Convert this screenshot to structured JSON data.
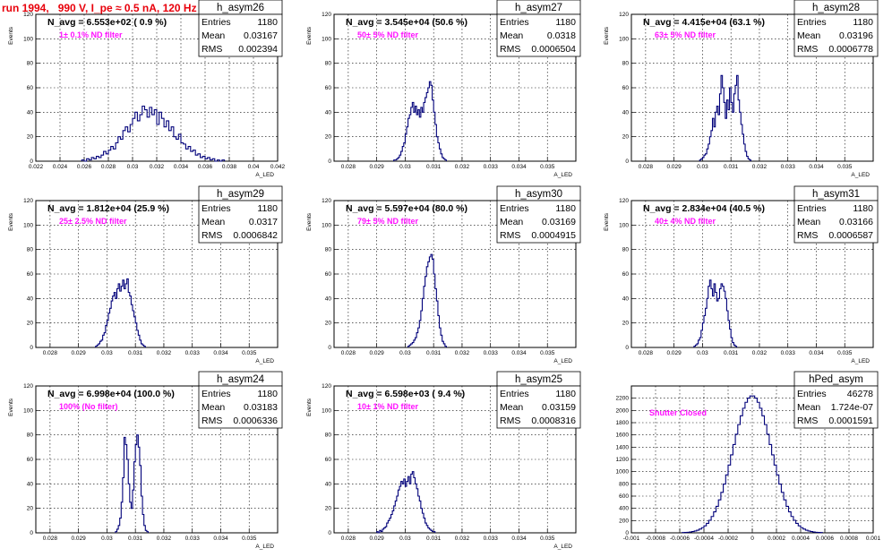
{
  "title": "run 1994,   990 V, I_pe ≈ 0.5 nA, 120 Hz",
  "chart_data": [
    {
      "type": "histogram",
      "name": "h_asym26",
      "navg": "N_avg = 6.553e+02 ( 0.9 %)",
      "filter": "1± 0.1% ND filter",
      "stats": {
        "Entries": "1180",
        "Mean": "0.03167",
        "RMS": "0.002394"
      },
      "xlabel": "A_LED",
      "ylabel": "Events",
      "xlim": [
        0.022,
        0.042
      ],
      "ylim": [
        0,
        120
      ],
      "xticks": [
        "0.022",
        "0.024",
        "0.026",
        "0.028",
        "0.03",
        "0.032",
        "0.034",
        "0.036",
        "0.038",
        "0.04",
        "0.042"
      ],
      "yticks": [
        "0",
        "20",
        "40",
        "60",
        "80",
        "100",
        "120"
      ],
      "bins": {
        "x0": 0.0258,
        "width": 0.0002,
        "values": [
          1,
          0,
          2,
          1,
          3,
          2,
          4,
          3,
          5,
          8,
          6,
          9,
          12,
          10,
          15,
          20,
          18,
          25,
          28,
          24,
          30,
          35,
          40,
          33,
          38,
          45,
          42,
          36,
          44,
          38,
          42,
          30,
          40,
          35,
          28,
          33,
          25,
          28,
          20,
          18,
          22,
          15,
          14,
          10,
          12,
          8,
          9,
          5,
          6,
          3,
          4,
          2,
          3,
          1,
          2,
          0,
          1,
          0,
          1
        ]
      }
    },
    {
      "type": "histogram",
      "name": "h_asym27",
      "navg": "N_avg = 3.545e+04 (50.6 %)",
      "filter": "50± 5% ND filter",
      "stats": {
        "Entries": "1180",
        "Mean": "0.0318",
        "RMS": "0.0006504"
      },
      "xlabel": "A_LED",
      "ylabel": "Events",
      "xlim": [
        0.0275,
        0.036
      ],
      "ylim": [
        0,
        120
      ],
      "xticks": [
        "0.028",
        "0.029",
        "0.03",
        "0.031",
        "0.032",
        "0.033",
        "0.034",
        "0.035"
      ],
      "yticks": [
        "0",
        "20",
        "40",
        "60",
        "80",
        "100",
        "120"
      ],
      "bins": {
        "x0": 0.0296,
        "width": 5e-05,
        "values": [
          1,
          1,
          2,
          3,
          5,
          8,
          12,
          15,
          22,
          28,
          35,
          38,
          44,
          48,
          40,
          45,
          38,
          42,
          36,
          44,
          40,
          48,
          52,
          56,
          60,
          65,
          62,
          50,
          40,
          30,
          20,
          15,
          10,
          6,
          3,
          2,
          1
        ]
      }
    },
    {
      "type": "histogram",
      "name": "h_asym28",
      "navg": "N_avg = 4.415e+04 (63.1 %)",
      "filter": "63± 5% ND filter",
      "stats": {
        "Entries": "1180",
        "Mean": "0.03196",
        "RMS": "0.0006778"
      },
      "xlabel": "A_LED",
      "ylabel": "Events",
      "xlim": [
        0.0275,
        0.036
      ],
      "ylim": [
        0,
        120
      ],
      "xticks": [
        "0.028",
        "0.029",
        "0.03",
        "0.031",
        "0.032",
        "0.033",
        "0.034",
        "0.035"
      ],
      "yticks": [
        "0",
        "20",
        "40",
        "60",
        "80",
        "100",
        "120"
      ],
      "bins": {
        "x0": 0.0299,
        "width": 5e-05,
        "values": [
          1,
          2,
          3,
          5,
          6,
          10,
          14,
          20,
          25,
          35,
          28,
          40,
          45,
          38,
          55,
          70,
          60,
          48,
          35,
          50,
          42,
          60,
          48,
          40,
          55,
          62,
          70,
          50,
          40,
          30,
          22,
          14,
          8,
          4,
          2,
          1
        ]
      }
    },
    {
      "type": "histogram",
      "name": "h_asym29",
      "navg": "N_avg = 1.812e+04 (25.9 %)",
      "filter": "25± 2.5% ND filter",
      "stats": {
        "Entries": "1180",
        "Mean": "0.0317",
        "RMS": "0.0006842"
      },
      "xlabel": "A_LED",
      "ylabel": "Events",
      "xlim": [
        0.0275,
        0.036
      ],
      "ylim": [
        0,
        120
      ],
      "xticks": [
        "0.028",
        "0.029",
        "0.03",
        "0.031",
        "0.032",
        "0.033",
        "0.034",
        "0.035"
      ],
      "yticks": [
        "0",
        "20",
        "40",
        "60",
        "80",
        "100",
        "120"
      ],
      "bins": {
        "x0": 0.0296,
        "width": 5e-05,
        "values": [
          1,
          2,
          3,
          5,
          6,
          10,
          12,
          18,
          22,
          28,
          32,
          38,
          42,
          45,
          40,
          48,
          52,
          46,
          50,
          55,
          48,
          52,
          56,
          45,
          42,
          35,
          30,
          25,
          20,
          14,
          10,
          6,
          3,
          2,
          1
        ]
      }
    },
    {
      "type": "histogram",
      "name": "h_asym30",
      "navg": "N_avg = 5.597e+04 (80.0 %)",
      "filter": "79± 5% ND filter",
      "stats": {
        "Entries": "1180",
        "Mean": "0.03169",
        "RMS": "0.0004915"
      },
      "xlabel": "A_LED",
      "ylabel": "Events",
      "xlim": [
        0.0275,
        0.036
      ],
      "ylim": [
        0,
        120
      ],
      "xticks": [
        "0.028",
        "0.029",
        "0.03",
        "0.031",
        "0.032",
        "0.033",
        "0.034",
        "0.035"
      ],
      "yticks": [
        "0",
        "20",
        "40",
        "60",
        "80",
        "100",
        "120"
      ],
      "bins": {
        "x0": 0.0301,
        "width": 5e-05,
        "values": [
          1,
          2,
          3,
          4,
          6,
          8,
          12,
          16,
          22,
          30,
          40,
          50,
          58,
          66,
          70,
          74,
          76,
          72,
          60,
          48,
          38,
          26,
          16,
          10,
          5,
          3,
          1
        ]
      }
    },
    {
      "type": "histogram",
      "name": "h_asym31",
      "navg": "N_avg = 2.834e+04 (40.5 %)",
      "filter": "40± 4% ND filter",
      "stats": {
        "Entries": "1180",
        "Mean": "0.03166",
        "RMS": "0.0006587"
      },
      "xlabel": "A_LED",
      "ylabel": "Events",
      "xlim": [
        0.0275,
        0.036
      ],
      "ylim": [
        0,
        120
      ],
      "xticks": [
        "0.028",
        "0.029",
        "0.03",
        "0.031",
        "0.032",
        "0.033",
        "0.034",
        "0.035"
      ],
      "yticks": [
        "0",
        "20",
        "40",
        "60",
        "80",
        "100",
        "120"
      ],
      "bins": {
        "x0": 0.0297,
        "width": 5e-05,
        "values": [
          1,
          2,
          3,
          6,
          8,
          14,
          20,
          26,
          32,
          40,
          50,
          55,
          48,
          42,
          52,
          45,
          38,
          40,
          48,
          52,
          50,
          46,
          40,
          30,
          22,
          15,
          8,
          4,
          2,
          1
        ]
      }
    },
    {
      "type": "histogram",
      "name": "h_asym24",
      "navg": "N_avg = 6.998e+04 (100.0 %)",
      "filter": "100% (No filter)",
      "stats": {
        "Entries": "1180",
        "Mean": "0.03183",
        "RMS": "0.0006336"
      },
      "xlabel": "A_LED",
      "ylabel": "Events",
      "xlim": [
        0.0275,
        0.036
      ],
      "ylim": [
        0,
        120
      ],
      "xticks": [
        "0.028",
        "0.029",
        "0.03",
        "0.031",
        "0.032",
        "0.033",
        "0.034",
        "0.035"
      ],
      "yticks": [
        "0",
        "20",
        "40",
        "60",
        "80",
        "100",
        "120"
      ],
      "bins": {
        "x0": 0.0303,
        "width": 5e-05,
        "values": [
          1,
          3,
          6,
          12,
          25,
          45,
          78,
          72,
          60,
          40,
          25,
          20,
          35,
          58,
          72,
          80,
          70,
          55,
          30,
          15,
          6,
          2,
          1
        ]
      }
    },
    {
      "type": "histogram",
      "name": "h_asym25",
      "navg": "N_avg = 6.598e+03 ( 9.4 %)",
      "filter": "10± 1% ND filter",
      "stats": {
        "Entries": "1180",
        "Mean": "0.03159",
        "RMS": "0.0008316"
      },
      "xlabel": "A_LED",
      "ylabel": "Events",
      "xlim": [
        0.0275,
        0.036
      ],
      "ylim": [
        0,
        120
      ],
      "xticks": [
        "0.028",
        "0.029",
        "0.03",
        "0.031",
        "0.032",
        "0.033",
        "0.034",
        "0.035"
      ],
      "yticks": [
        "0",
        "20",
        "40",
        "60",
        "80",
        "100",
        "120"
      ],
      "bins": {
        "x0": 0.029,
        "width": 5e-05,
        "values": [
          1,
          0,
          2,
          1,
          3,
          4,
          5,
          8,
          10,
          12,
          15,
          18,
          22,
          26,
          30,
          35,
          38,
          42,
          40,
          44,
          38,
          42,
          46,
          40,
          48,
          50,
          45,
          40,
          36,
          30,
          26,
          20,
          16,
          12,
          8,
          6,
          4,
          3,
          2,
          1,
          1
        ]
      }
    },
    {
      "type": "histogram",
      "name": "hPed_asym",
      "navg": "",
      "filter": "Shutter Closed",
      "stats": {
        "Entries": "46278",
        "Mean": "1.724e-07",
        "RMS": "0.0001591"
      },
      "xlabel": "",
      "ylabel": "",
      "xlim": [
        -0.001,
        0.001
      ],
      "ylim": [
        0,
        2400
      ],
      "xticks": [
        "-0.001",
        "-0.0008",
        "-0.0006",
        "-0.0004",
        "-0.0002",
        "0",
        "0.0002",
        "0.0004",
        "0.0006",
        "0.0008",
        "0.001"
      ],
      "yticks": [
        "0",
        "200",
        "400",
        "600",
        "800",
        "1000",
        "1200",
        "1400",
        "1600",
        "1800",
        "2000",
        "2200"
      ],
      "bins": {
        "gauss": {
          "mean": 0.0,
          "sigma": 0.00016,
          "peak": 2240,
          "x0": -0.00058,
          "width": 2e-05,
          "n": 58
        }
      }
    }
  ]
}
